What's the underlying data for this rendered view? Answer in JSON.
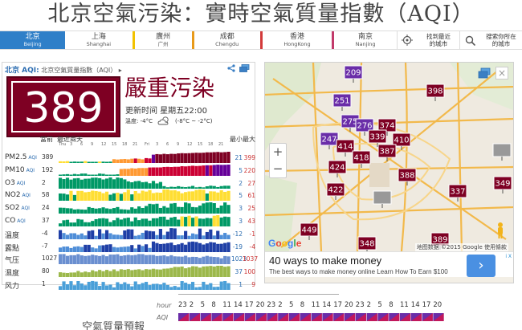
{
  "title": "北京空氣污染：實時空氣質量指數（AQI）",
  "cities": [
    {
      "name": "北京",
      "sub": "Beijing",
      "active": true,
      "color": "#2f7fc8"
    },
    {
      "name": "上海",
      "sub": "Shanghai",
      "active": false,
      "color": "#2f7fc8"
    },
    {
      "name": "廣州",
      "sub": "广州",
      "active": false,
      "color": "#f2c200"
    },
    {
      "name": "成都",
      "sub": "Chengdu",
      "active": false,
      "color": "#e89a1a"
    },
    {
      "name": "香港",
      "sub": "HongKong",
      "active": false,
      "color": "#d23a3a"
    },
    {
      "name": "南京",
      "sub": "Nanjing",
      "active": false,
      "color": "#c23a6a"
    }
  ],
  "nav": {
    "locate_label_1": "找到最近",
    "locate_label_2": "的城市",
    "search_label_1": "搜索你所在",
    "search_label_2": "的城市"
  },
  "panel": {
    "brand": "北京 AQI:",
    "subtitle": "北京空氣質量指數（AQI）",
    "aqi": "389",
    "level": "嚴重污染",
    "aqi_color": "#7e0023",
    "updated": "更新时间 星期五22:00",
    "temp_label": "溫度: -4°C",
    "temp_range": "(-8°C ~ -2°C)",
    "weather_icon": "cloudy-icon",
    "header_current": "當前",
    "header_history": "最近兩天",
    "header_min": "最小",
    "header_max": "最大",
    "days": [
      "Thu",
      "Fri"
    ]
  },
  "pollutants": [
    {
      "name": "PM2.5",
      "aqi_tag": "AQI",
      "cur": "389",
      "min": "21",
      "max": "399",
      "kind": "pm25"
    },
    {
      "name": "PM10",
      "aqi_tag": "AQI",
      "cur": "192",
      "min": "5",
      "max": "220",
      "kind": "pm10"
    },
    {
      "name": "O3",
      "aqi_tag": "AQI",
      "cur": "2",
      "min": "2",
      "max": "27",
      "kind": "o3"
    },
    {
      "name": "NO2",
      "aqi_tag": "AQI",
      "cur": "58",
      "min": "5",
      "max": "61",
      "kind": "no2"
    },
    {
      "name": "SO2",
      "aqi_tag": "AQI",
      "cur": "24",
      "min": "3",
      "max": "25",
      "kind": "so2"
    },
    {
      "name": "CO",
      "aqi_tag": "AQI",
      "cur": "37",
      "min": "3",
      "max": "43",
      "kind": "co"
    },
    {
      "name": "溫度",
      "aqi_tag": "",
      "cur": "-4",
      "min": "-12",
      "max": "-1",
      "kind": "temp"
    },
    {
      "name": "露點",
      "aqi_tag": "",
      "cur": "-7",
      "min": "-19",
      "max": "-4",
      "kind": "dew"
    },
    {
      "name": "气压",
      "aqi_tag": "",
      "cur": "1027",
      "min": "1023",
      "max": "1037",
      "kind": "pressure"
    },
    {
      "name": "濕度",
      "aqi_tag": "",
      "cur": "80",
      "min": "37",
      "max": "100",
      "kind": "humidity"
    },
    {
      "name": "风力",
      "aqi_tag": "",
      "cur": "1",
      "min": "1",
      "max": "9",
      "kind": "wind"
    }
  ],
  "map": {
    "google": "Google",
    "credit": "地图数据 ©2015 Google  使用條款",
    "markers": [
      {
        "v": "209",
        "c": "#6a2da8"
      },
      {
        "v": "398",
        "c": "#7e0023"
      },
      {
        "v": "251",
        "c": "#6a2da8"
      },
      {
        "v": "275",
        "c": "#6a2da8"
      },
      {
        "v": "276",
        "c": "#6a2da8"
      },
      {
        "v": "374",
        "c": "#7e0023"
      },
      {
        "v": "339",
        "c": "#7e0023"
      },
      {
        "v": "247",
        "c": "#6a2da8"
      },
      {
        "v": "414",
        "c": "#7e0023"
      },
      {
        "v": "410",
        "c": "#7e0023"
      },
      {
        "v": "387",
        "c": "#7e0023"
      },
      {
        "v": "339",
        "c": "#7e0023"
      },
      {
        "v": "418",
        "c": "#7e0023"
      },
      {
        "v": "424",
        "c": "#7e0023"
      },
      {
        "v": "388",
        "c": "#7e0023"
      },
      {
        "v": "422",
        "c": "#7e0023"
      },
      {
        "v": "337",
        "c": "#7e0023"
      },
      {
        "v": "349",
        "c": "#7e0023"
      },
      {
        "v": "449",
        "c": "#7e0023"
      },
      {
        "v": "348",
        "c": "#7e0023"
      },
      {
        "v": "389",
        "c": "#7e0023"
      },
      {
        "v": "355",
        "c": "#7e0023"
      }
    ]
  },
  "ad": {
    "title": "40 ways to make money",
    "sub": "The best ways to make money online Learn How To Earn $100",
    "badge": "i X"
  },
  "forecast": {
    "title": "空氣質量預報",
    "hour_label": "hour",
    "aqi_label": "AQI",
    "hours": [
      "23",
      "2",
      "5",
      "8",
      "11",
      "14",
      "17",
      "20",
      "23",
      "2",
      "5",
      "8",
      "11",
      "14",
      "17",
      "20",
      "23",
      "2",
      "5",
      "8",
      "11",
      "14",
      "17",
      "20"
    ]
  }
}
